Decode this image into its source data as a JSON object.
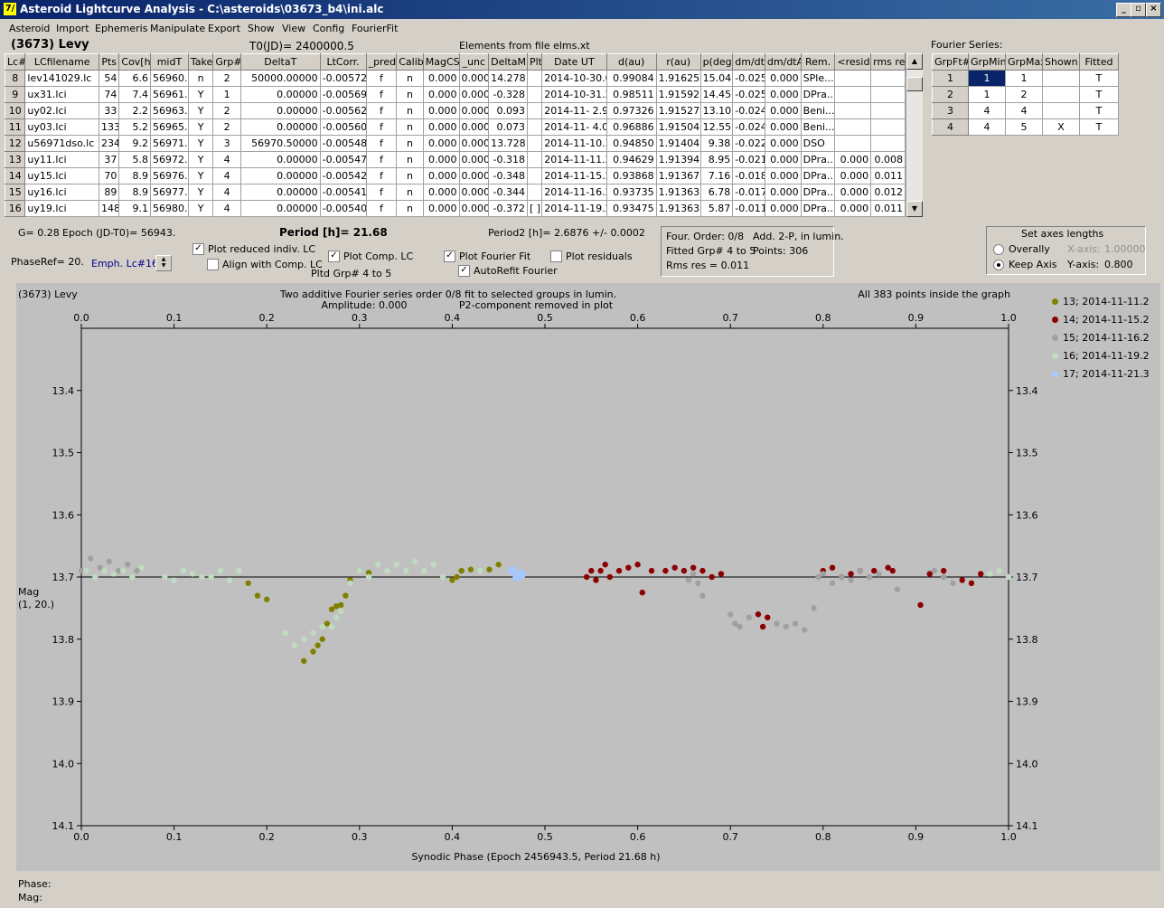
{
  "window": {
    "title": "Asteroid Lightcurve Analysis - C:\\asteroids\\03673_b4\\ini.alc",
    "icon": "7/"
  },
  "menu": [
    "Asteroid",
    "Import",
    "Ephemeris",
    "Manipulate",
    "Export",
    "Show",
    "View",
    "Config",
    "FourierFit"
  ],
  "header": {
    "asteroid": "(3673) Levy",
    "t0": "T0(JD)= 2400000.5",
    "elements": "Elements from file elms.xt",
    "fourier_label": "Fourier Series:"
  },
  "lc_table": {
    "columns": [
      "Lc#",
      "LCfilename",
      "Pts",
      "Cov[h]",
      "midT",
      "Take",
      "Grp#",
      "DeltaT",
      "LtCorr.",
      "_pred.",
      "Calib.",
      "MagCS",
      "_unc",
      "DeltaM",
      "Plt",
      "Date UT",
      "d(au)",
      "r(au)",
      "p(deg)",
      "dm/dt",
      "dm/dtA",
      "Rem.",
      "<resid>",
      "rms res"
    ],
    "rows": [
      [
        "8",
        "lev141029.lc",
        "54",
        "6.6",
        "56960.0",
        "n",
        "2",
        "50000.00000",
        "-0.00572",
        "f",
        "n",
        "0.000",
        "0.000",
        "14.278",
        "",
        "2014-10-30.0",
        "0.99084",
        "1.91625",
        "15.04",
        "-0.025",
        "0.000",
        "SPle...",
        "",
        ""
      ],
      [
        "9",
        "ux31.lci",
        "74",
        "7.4",
        "56961.2",
        "Y",
        "1",
        "0.00000",
        "-0.00569",
        "f",
        "n",
        "0.000",
        "0.000",
        "-0.328",
        "",
        "2014-10-31.2",
        "0.98511",
        "1.91592",
        "14.45",
        "-0.025",
        "0.000",
        "DPra...",
        "",
        ""
      ],
      [
        "10",
        "uy02.lci",
        "33",
        "2.2",
        "56963.9",
        "Y",
        "2",
        "0.00000",
        "-0.00562",
        "f",
        "n",
        "0.000",
        "0.000",
        "0.093",
        "",
        "2014-11- 2.9",
        "0.97326",
        "1.91527",
        "13.10",
        "-0.024",
        "0.000",
        "Beni...",
        "",
        ""
      ],
      [
        "11",
        "uy03.lci",
        "133",
        "5.2",
        "56965.0",
        "Y",
        "2",
        "0.00000",
        "-0.00560",
        "f",
        "n",
        "0.000",
        "0.000",
        "0.073",
        "",
        "2014-11- 4.0",
        "0.96886",
        "1.91504",
        "12.55",
        "-0.024",
        "0.000",
        "Beni...",
        "",
        ""
      ],
      [
        "12",
        "u56971dso.lc",
        "234",
        "9.2",
        "56971.3",
        "Y",
        "3",
        "56970.50000",
        "-0.00548",
        "f",
        "n",
        "0.000",
        "0.000",
        "13.728",
        "",
        "2014-11-10.3",
        "0.94850",
        "1.91404",
        "9.38",
        "-0.022",
        "0.000",
        "DSO",
        "",
        ""
      ],
      [
        "13",
        "uy11.lci",
        "37",
        "5.8",
        "56972.2",
        "Y",
        "4",
        "0.00000",
        "-0.00547",
        "f",
        "n",
        "0.000",
        "0.000",
        "-0.318",
        "",
        "2014-11-11.2",
        "0.94629",
        "1.91394",
        "8.95",
        "-0.021",
        "0.000",
        "DPra...",
        "0.000",
        "0.008"
      ],
      [
        "14",
        "uy15.lci",
        "70",
        "8.9",
        "56976.2",
        "Y",
        "4",
        "0.00000",
        "-0.00542",
        "f",
        "n",
        "0.000",
        "0.000",
        "-0.348",
        "",
        "2014-11-15.2",
        "0.93868",
        "1.91367",
        "7.16",
        "-0.018",
        "0.000",
        "DPra...",
        "0.000",
        "0.011"
      ],
      [
        "15",
        "uy16.lci",
        "89",
        "8.9",
        "56977.2",
        "Y",
        "4",
        "0.00000",
        "-0.00541",
        "f",
        "n",
        "0.000",
        "0.000",
        "-0.344",
        "",
        "2014-11-16.2",
        "0.93735",
        "1.91363",
        "6.78",
        "-0.017",
        "0.000",
        "DPra...",
        "0.000",
        "0.012"
      ],
      [
        "16",
        "uy19.lci",
        "148",
        "9.1",
        "56980.2",
        "Y",
        "4",
        "0.00000",
        "-0.00540",
        "f",
        "n",
        "0.000",
        "0.000",
        "-0.372",
        "[ ]",
        "2014-11-19.2",
        "0.93475",
        "1.91363",
        "5.87",
        "-0.011",
        "0.000",
        "DPra...",
        "0.000",
        "0.011"
      ]
    ]
  },
  "fourier_table": {
    "columns": [
      "GrpFt#",
      "GrpMin",
      "GrpMax",
      "Shown",
      "Fitted"
    ],
    "rows": [
      [
        "1",
        "1",
        "1",
        "",
        "T"
      ],
      [
        "2",
        "1",
        "2",
        "",
        "T"
      ],
      [
        "3",
        "4",
        "4",
        "",
        "T"
      ],
      [
        "4",
        "4",
        "5",
        "X",
        "T"
      ]
    ]
  },
  "controls": {
    "g": "G= 0.28",
    "epoch": "Epoch (JD-T0)= 56943.",
    "period": "Period [h]= 21.68",
    "period2": "Period2 [h]= 2.6876 +/- 0.0002",
    "phaseref": "PhaseRef= 20.",
    "emph": "Emph. Lc#16:",
    "plot_reduced": "Plot reduced indiv. LC",
    "align": "Align with Comp. LC",
    "plot_comp": "Plot Comp. LC",
    "pltd_grp": "Pltd Grp#  4   to   5",
    "plot_fourier": "Plot Fourier Fit",
    "autorefit": "AutoRefit Fourier",
    "plot_resid": "Plot residuals",
    "check_x": "✓"
  },
  "fit_info": {
    "order": "Four. Order:  0/8",
    "add": "Add. 2-P, in lumin.",
    "fitted": "Fitted Grp# 4 to 5",
    "points": "Points: 306",
    "rms": "Rms res     = 0.011"
  },
  "axes_box": {
    "title": "Set axes lengths",
    "overally": "Overally",
    "keep": "Keep Axis",
    "xaxis_label": "X-axis:",
    "xaxis_val": "1.00000",
    "yaxis_label": "Y-axis:",
    "yaxis_val": "0.800"
  },
  "plot": {
    "name": "(3673) Levy",
    "title1": "Two additive Fourier series order 0/8 fit to selected groups in lumin.",
    "title2": "Amplitude: 0.000",
    "title3": "P2-component removed in plot",
    "note": "All 383 points inside the graph",
    "xlabel": "Synodic Phase (Epoch 2456943.5, Period 21.68 h)",
    "ylabel1": "Mag",
    "ylabel2": "(1, 20.)"
  },
  "status": {
    "phase": "Phase:",
    "mag": "Mag:"
  },
  "chart_data": {
    "type": "scatter",
    "xlabel": "Synodic Phase (Epoch 2456943.5, Period 21.68 h)",
    "ylabel": "Mag",
    "xlim": [
      0.0,
      1.0
    ],
    "ylim": [
      14.1,
      13.3
    ],
    "x_ticks": [
      "0.0",
      "0.1",
      "0.2",
      "0.3",
      "0.4",
      "0.5",
      "0.6",
      "0.7",
      "0.8",
      "0.9",
      "1.0"
    ],
    "y_ticks": [
      "13.4",
      "13.5",
      "13.6",
      "13.7",
      "13.8",
      "13.9",
      "14.0",
      "14.1"
    ],
    "fit_line": 13.7,
    "legend_position": "right",
    "series": [
      {
        "name": "13; 2014-11-11.2",
        "color": "#808000",
        "points": [
          [
            0.18,
            13.71
          ],
          [
            0.19,
            13.73
          ],
          [
            0.2,
            13.736
          ],
          [
            0.24,
            13.835
          ],
          [
            0.25,
            13.82
          ],
          [
            0.255,
            13.81
          ],
          [
            0.26,
            13.8
          ],
          [
            0.265,
            13.775
          ],
          [
            0.27,
            13.752
          ],
          [
            0.275,
            13.747
          ],
          [
            0.28,
            13.745
          ],
          [
            0.285,
            13.73
          ],
          [
            0.29,
            13.705
          ],
          [
            0.3,
            13.69
          ],
          [
            0.31,
            13.693
          ],
          [
            0.4,
            13.705
          ],
          [
            0.405,
            13.7
          ],
          [
            0.41,
            13.69
          ],
          [
            0.42,
            13.688
          ],
          [
            0.44,
            13.688
          ],
          [
            0.45,
            13.68
          ]
        ]
      },
      {
        "name": "14; 2014-11-15.2",
        "color": "#8b0000",
        "points": [
          [
            0.545,
            13.7
          ],
          [
            0.55,
            13.69
          ],
          [
            0.555,
            13.705
          ],
          [
            0.56,
            13.69
          ],
          [
            0.565,
            13.68
          ],
          [
            0.57,
            13.7
          ],
          [
            0.58,
            13.69
          ],
          [
            0.59,
            13.685
          ],
          [
            0.6,
            13.68
          ],
          [
            0.605,
            13.725
          ],
          [
            0.615,
            13.69
          ],
          [
            0.63,
            13.69
          ],
          [
            0.64,
            13.685
          ],
          [
            0.65,
            13.69
          ],
          [
            0.66,
            13.685
          ],
          [
            0.67,
            13.69
          ],
          [
            0.68,
            13.7
          ],
          [
            0.69,
            13.695
          ],
          [
            0.73,
            13.76
          ],
          [
            0.735,
            13.78
          ],
          [
            0.74,
            13.765
          ],
          [
            0.8,
            13.69
          ],
          [
            0.81,
            13.685
          ],
          [
            0.82,
            13.7
          ],
          [
            0.83,
            13.695
          ],
          [
            0.84,
            13.69
          ],
          [
            0.855,
            13.69
          ],
          [
            0.87,
            13.685
          ],
          [
            0.875,
            13.69
          ],
          [
            0.905,
            13.745
          ],
          [
            0.915,
            13.695
          ],
          [
            0.93,
            13.69
          ],
          [
            0.95,
            13.705
          ],
          [
            0.96,
            13.71
          ],
          [
            0.97,
            13.695
          ]
        ]
      },
      {
        "name": "15; 2014-11-16.2",
        "color": "#a0a0a0",
        "points": [
          [
            0.0,
            13.69
          ],
          [
            0.01,
            13.67
          ],
          [
            0.02,
            13.685
          ],
          [
            0.03,
            13.675
          ],
          [
            0.04,
            13.69
          ],
          [
            0.05,
            13.68
          ],
          [
            0.06,
            13.69
          ],
          [
            0.655,
            13.705
          ],
          [
            0.66,
            13.695
          ],
          [
            0.665,
            13.71
          ],
          [
            0.67,
            13.73
          ],
          [
            0.7,
            13.76
          ],
          [
            0.705,
            13.775
          ],
          [
            0.71,
            13.78
          ],
          [
            0.72,
            13.765
          ],
          [
            0.75,
            13.775
          ],
          [
            0.76,
            13.78
          ],
          [
            0.77,
            13.775
          ],
          [
            0.78,
            13.785
          ],
          [
            0.79,
            13.75
          ],
          [
            0.795,
            13.7
          ],
          [
            0.8,
            13.695
          ],
          [
            0.81,
            13.71
          ],
          [
            0.82,
            13.7
          ],
          [
            0.83,
            13.705
          ],
          [
            0.84,
            13.69
          ],
          [
            0.85,
            13.7
          ],
          [
            0.86,
            13.695
          ],
          [
            0.88,
            13.72
          ],
          [
            0.92,
            13.69
          ],
          [
            0.93,
            13.7
          ],
          [
            0.94,
            13.71
          ],
          [
            0.99,
            13.69
          ]
        ]
      },
      {
        "name": "16; 2014-11-19.2",
        "color": "#c0dcc0",
        "points": [
          [
            0.005,
            13.69
          ],
          [
            0.015,
            13.7
          ],
          [
            0.025,
            13.69
          ],
          [
            0.035,
            13.695
          ],
          [
            0.045,
            13.69
          ],
          [
            0.055,
            13.7
          ],
          [
            0.065,
            13.685
          ],
          [
            0.09,
            13.7
          ],
          [
            0.1,
            13.705
          ],
          [
            0.11,
            13.69
          ],
          [
            0.12,
            13.695
          ],
          [
            0.13,
            13.7
          ],
          [
            0.14,
            13.7
          ],
          [
            0.15,
            13.69
          ],
          [
            0.16,
            13.705
          ],
          [
            0.17,
            13.69
          ],
          [
            0.22,
            13.79
          ],
          [
            0.23,
            13.81
          ],
          [
            0.24,
            13.8
          ],
          [
            0.25,
            13.79
          ],
          [
            0.26,
            13.78
          ],
          [
            0.27,
            13.78
          ],
          [
            0.275,
            13.765
          ],
          [
            0.28,
            13.755
          ],
          [
            0.29,
            13.71
          ],
          [
            0.3,
            13.69
          ],
          [
            0.31,
            13.7
          ],
          [
            0.32,
            13.68
          ],
          [
            0.33,
            13.69
          ],
          [
            0.34,
            13.68
          ],
          [
            0.35,
            13.69
          ],
          [
            0.36,
            13.675
          ],
          [
            0.37,
            13.69
          ],
          [
            0.38,
            13.68
          ],
          [
            0.39,
            13.7
          ],
          [
            0.43,
            13.69
          ],
          [
            0.98,
            13.695
          ],
          [
            0.99,
            13.69
          ],
          [
            1.0,
            13.7
          ]
        ]
      },
      {
        "name": "17; 2014-11-21.3",
        "color": "#a6c8ff",
        "points": [
          [
            0.465,
            13.69
          ],
          [
            0.47,
            13.7
          ],
          [
            0.475,
            13.695
          ]
        ]
      }
    ]
  }
}
